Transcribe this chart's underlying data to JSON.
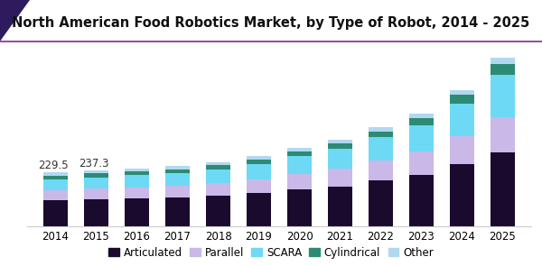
{
  "title": "North American Food Robotics Market, by Type of Robot, 2014 - 2025",
  "years": [
    2014,
    2015,
    2016,
    2017,
    2018,
    2019,
    2020,
    2021,
    2022,
    2023,
    2024,
    2025
  ],
  "categories": [
    "Articulated",
    "Parallel",
    "SCARA",
    "Cylindrical",
    "Other"
  ],
  "colors": [
    "#1a0a2e",
    "#c9b8e8",
    "#6dd9f5",
    "#2d8b74",
    "#b0d8f0"
  ],
  "data": {
    "Articulated": [
      110,
      115,
      118,
      122,
      130,
      140,
      155,
      168,
      195,
      220,
      265,
      315
    ],
    "Parallel": [
      42,
      45,
      47,
      50,
      54,
      60,
      68,
      76,
      85,
      98,
      118,
      150
    ],
    "SCARA": [
      46,
      48,
      52,
      54,
      58,
      65,
      76,
      86,
      98,
      112,
      140,
      180
    ],
    "Cylindrical": [
      16,
      16,
      16,
      17,
      17,
      19,
      21,
      23,
      26,
      31,
      36,
      46
    ],
    "Other": [
      15,
      13,
      13,
      13,
      13,
      14,
      15,
      16,
      17,
      20,
      22,
      27
    ]
  },
  "annotations": {
    "2014": "229.5",
    "2015": "237.3"
  },
  "bar_width": 0.62,
  "title_fontsize": 10.5,
  "tick_fontsize": 8.5,
  "legend_fontsize": 8.5,
  "background_color": "#ffffff",
  "line_color": "#7b2d8b",
  "ylim_max": 760
}
